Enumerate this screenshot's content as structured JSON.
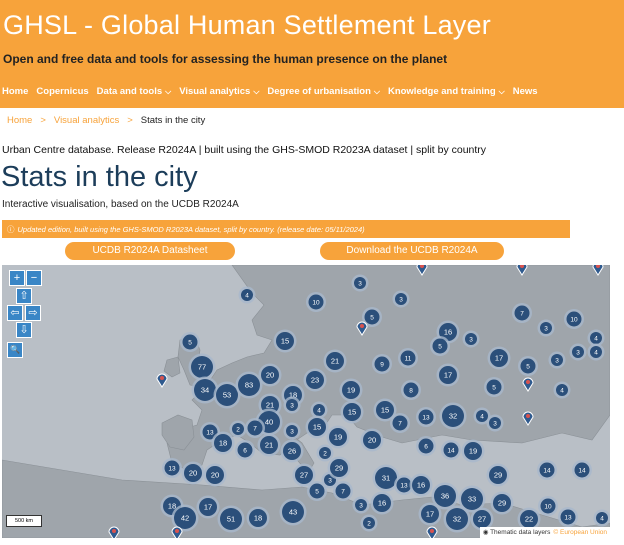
{
  "header": {
    "title": "GHSL - Global Human Settlement Layer",
    "subtitle": "Open and free data and tools for assessing the human presence on the planet",
    "nav": [
      {
        "label": "Home",
        "dropdown": false
      },
      {
        "label": "Copernicus",
        "dropdown": false
      },
      {
        "label": "Data and tools",
        "dropdown": true
      },
      {
        "label": "Visual analytics",
        "dropdown": true
      },
      {
        "label": "Degree of urbanisation",
        "dropdown": true
      },
      {
        "label": "Knowledge and training",
        "dropdown": true
      },
      {
        "label": "News",
        "dropdown": false
      }
    ]
  },
  "breadcrumb": {
    "items": [
      "Home",
      "Visual analytics"
    ],
    "separator": ">",
    "current": "Stats in the city"
  },
  "release_line": "Urban Centre database. Release R2024A | built using the GHS-SMOD R2023A dataset | split by country",
  "page_title": "Stats in the city",
  "description": "Interactive visualisation, based on the UCDB R2024A",
  "notice": "Updated edition, built using the GHS-SMOD R2023A dataset, split by country. (release date: 05/11/2024)",
  "buttons": {
    "datasheet": "UCDB R2024A Datasheet",
    "download": "Download the UCDB R2024A"
  },
  "map": {
    "zoom_in": "+",
    "zoom_out": "−",
    "home": "⇧",
    "pan_left": "⇦",
    "pan_right": "⇨",
    "pan_down": "⇩",
    "search": "🔍",
    "scale": "500 km",
    "attribution": "Thematic data layers",
    "attribution_link": "© European Union",
    "cluster_labels": [
      "3",
      "10",
      "4",
      "5",
      "3",
      "7",
      "10",
      "3",
      "5",
      "16",
      "3",
      "5",
      "4",
      "3",
      "15",
      "21",
      "77",
      "9",
      "11",
      "17",
      "17",
      "3",
      "4",
      "5",
      "34",
      "53",
      "83",
      "20",
      "23",
      "18",
      "19",
      "8",
      "5",
      "4",
      "21",
      "4",
      "3",
      "7",
      "15",
      "15",
      "13",
      "32",
      "4",
      "3",
      "40",
      "3",
      "13",
      "21",
      "15",
      "19",
      "20",
      "6",
      "14",
      "19",
      "7",
      "2",
      "26",
      "2",
      "3",
      "13",
      "27",
      "29",
      "18",
      "20",
      "6",
      "20",
      "5",
      "31",
      "13",
      "16",
      "29",
      "14",
      "7",
      "17",
      "16",
      "36",
      "33",
      "29",
      "10",
      "13",
      "14",
      "18",
      "42",
      "51",
      "18",
      "43",
      "17",
      "32",
      "27",
      "22",
      "4",
      "3",
      "2"
    ],
    "colors": {
      "cluster": "#2b4f7a",
      "cluster_ring": "#a7b8cc",
      "marker": "#2f5a8e",
      "land": "#9fa5ab",
      "sea": "#b9bfc6",
      "accent": "#f7a33b"
    }
  }
}
